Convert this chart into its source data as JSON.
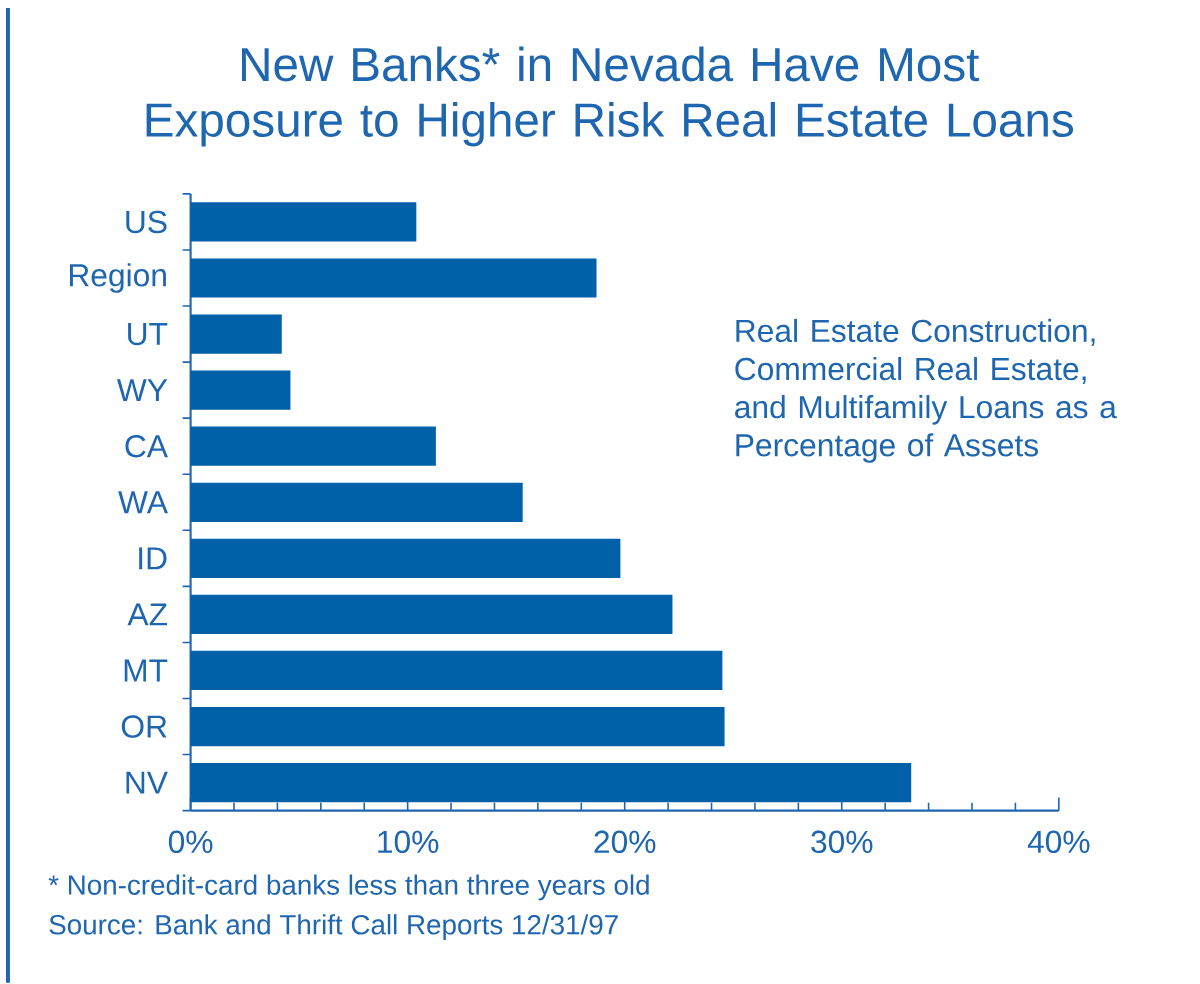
{
  "chart_data": {
    "type": "bar",
    "orientation": "horizontal",
    "title": "New Banks* in Nevada Have Most Exposure to Higher Risk Real Estate Loans",
    "categories": [
      "US",
      "Region",
      "UT",
      "WY",
      "CA",
      "WA",
      "ID",
      "AZ",
      "MT",
      "OR",
      "NV"
    ],
    "values": [
      10.4,
      18.7,
      4.2,
      4.6,
      11.3,
      15.3,
      19.8,
      22.2,
      24.5,
      24.6,
      33.2
    ],
    "color": "#0060a8",
    "xlim": [
      0,
      40
    ],
    "xticks": [
      {
        "value": 0,
        "label": "0%"
      },
      {
        "value": 10,
        "label": "10%"
      },
      {
        "value": 20,
        "label": "20%"
      },
      {
        "value": 30,
        "label": "30%"
      },
      {
        "value": 40,
        "label": "40%"
      }
    ],
    "annotations": [
      "Real Estate Construction, Commercial Real Estate, and Multifamily Loans as a Percentage of Assets",
      "* Non-credit-card banks less than three years old",
      "Source: Bank and Thrift Call Reports 12/31/97"
    ]
  }
}
